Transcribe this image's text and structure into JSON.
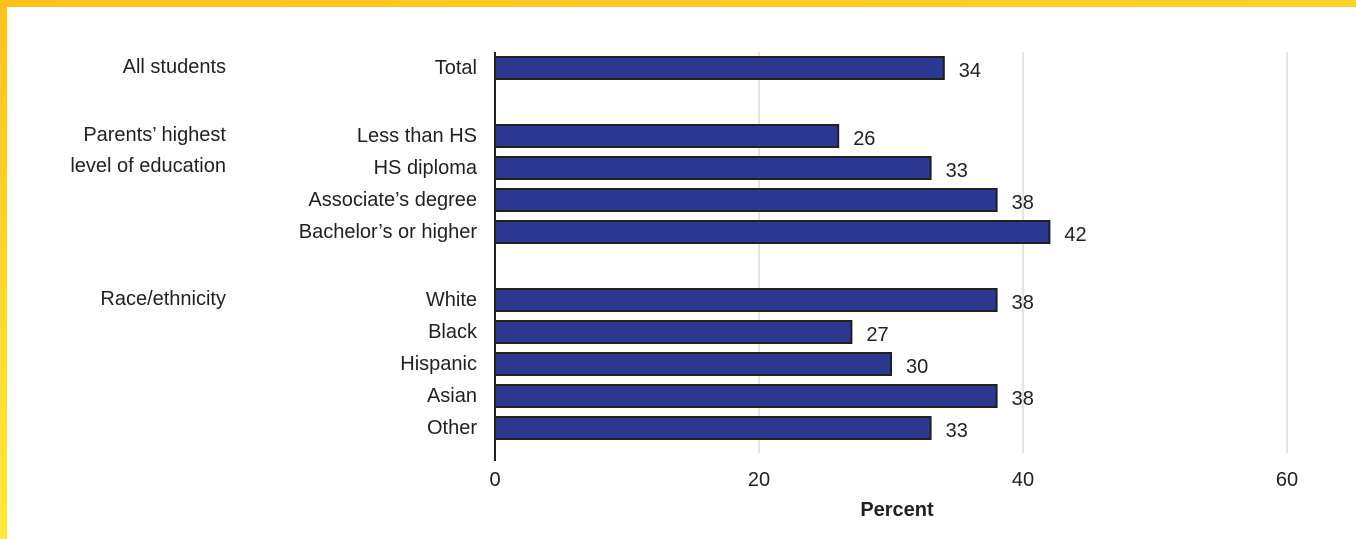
{
  "chart_data": {
    "type": "bar",
    "orientation": "horizontal",
    "xlabel": "Percent",
    "xlim": [
      0,
      60
    ],
    "xticks": [
      0,
      20,
      40,
      60
    ],
    "grid": true,
    "bar_color": "#2b3990",
    "groups": [
      {
        "label": "All students",
        "categories": [
          "Total"
        ],
        "values": [
          34
        ]
      },
      {
        "label": "Parents’ highest level of education",
        "label_lines": [
          "Parents’ highest",
          "level of education"
        ],
        "categories": [
          "Less than HS",
          "HS diploma",
          "Associate’s degree",
          "Bachelor’s or higher"
        ],
        "values": [
          26,
          33,
          38,
          42
        ]
      },
      {
        "label": "Race/ethnicity",
        "categories": [
          "White",
          "Black",
          "Hispanic",
          "Asian",
          "Other"
        ],
        "values": [
          38,
          27,
          30,
          38,
          33
        ]
      }
    ]
  }
}
